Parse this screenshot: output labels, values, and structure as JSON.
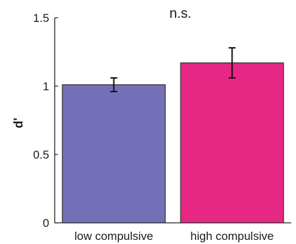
{
  "chart_data": {
    "type": "bar",
    "title": "",
    "xlabel": "",
    "ylabel": "d'",
    "ylim": [
      0,
      1.5
    ],
    "yticks": [
      0,
      0.5,
      1,
      1.5
    ],
    "ytick_labels": [
      "0",
      "0.5",
      "1",
      "1.5"
    ],
    "categories": [
      "low compulsive",
      "high compulsive"
    ],
    "values": [
      1.01,
      1.17
    ],
    "errors": [
      0.05,
      0.11
    ],
    "colors": [
      "#7470b8",
      "#e62784"
    ],
    "annotation": "n.s.",
    "grid": false,
    "legend": "none"
  }
}
